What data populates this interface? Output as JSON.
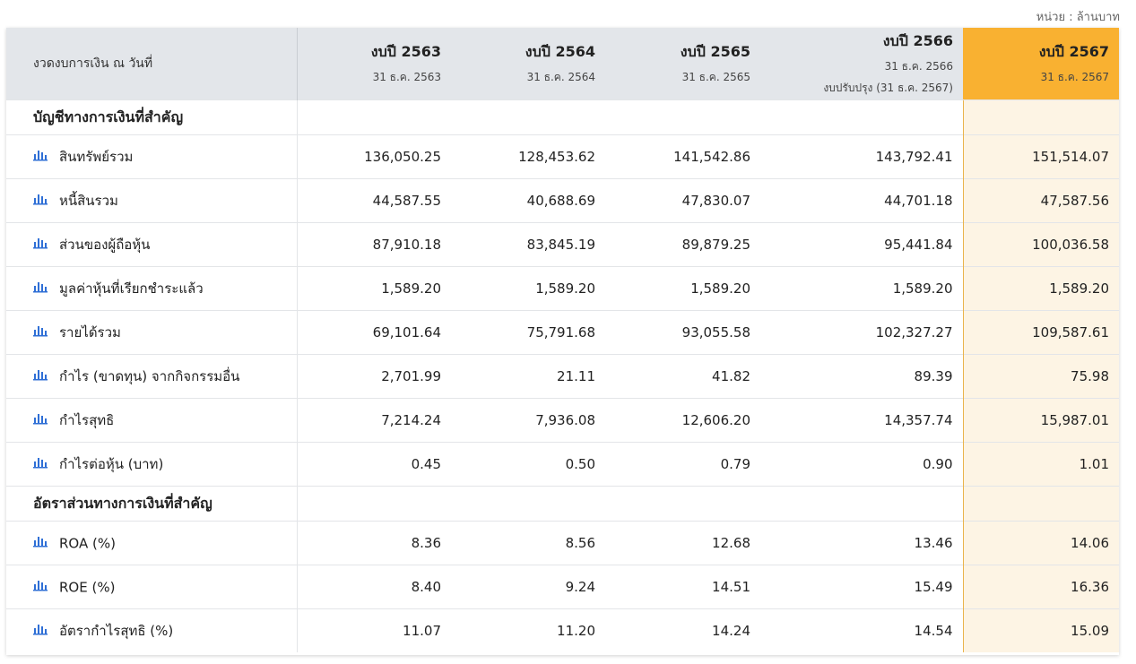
{
  "unit_label": "หน่วย : ล้านบาท",
  "header": {
    "first_col": "งวดงบการเงิน ณ วันที่",
    "years": [
      {
        "title": "งบปี 2563",
        "sub": "31 ธ.ค. 2563",
        "sub2": ""
      },
      {
        "title": "งบปี 2564",
        "sub": "31 ธ.ค. 2564",
        "sub2": ""
      },
      {
        "title": "งบปี 2565",
        "sub": "31 ธ.ค. 2565",
        "sub2": ""
      },
      {
        "title": "งบปี 2566",
        "sub": "31 ธ.ค. 2566",
        "sub2": "งบปรับปรุง (31 ธ.ค. 2567)"
      },
      {
        "title": "งบปี 2567",
        "sub": "31 ธ.ค. 2567",
        "sub2": ""
      }
    ]
  },
  "highlight_color": "#f9b131",
  "icon_color": "#2f6fd6",
  "sections": [
    {
      "title": "บัญชีทางการเงินที่สำคัญ",
      "rows": [
        {
          "icon": "bar-chart-icon",
          "label": "สินทรัพย์รวม",
          "values": [
            "136,050.25",
            "128,453.62",
            "141,542.86",
            "143,792.41",
            "151,514.07"
          ]
        },
        {
          "icon": "bar-chart-icon",
          "label": "หนี้สินรวม",
          "values": [
            "44,587.55",
            "40,688.69",
            "47,830.07",
            "44,701.18",
            "47,587.56"
          ]
        },
        {
          "icon": "bar-chart-icon",
          "label": "ส่วนของผู้ถือหุ้น",
          "values": [
            "87,910.18",
            "83,845.19",
            "89,879.25",
            "95,441.84",
            "100,036.58"
          ]
        },
        {
          "icon": "bar-chart-icon",
          "label": "มูลค่าหุ้นที่เรียกชำระแล้ว",
          "values": [
            "1,589.20",
            "1,589.20",
            "1,589.20",
            "1,589.20",
            "1,589.20"
          ]
        },
        {
          "icon": "bar-chart-icon",
          "label": "รายได้รวม",
          "values": [
            "69,101.64",
            "75,791.68",
            "93,055.58",
            "102,327.27",
            "109,587.61"
          ]
        },
        {
          "icon": "bar-chart-icon",
          "label": "กำไร (ขาดทุน) จากกิจกรรมอื่น",
          "values": [
            "2,701.99",
            "21.11",
            "41.82",
            "89.39",
            "75.98"
          ]
        },
        {
          "icon": "bar-chart-icon",
          "label": "กำไรสุทธิ",
          "values": [
            "7,214.24",
            "7,936.08",
            "12,606.20",
            "14,357.74",
            "15,987.01"
          ]
        },
        {
          "icon": "bar-chart-icon",
          "label": "กำไรต่อหุ้น (บาท)",
          "values": [
            "0.45",
            "0.50",
            "0.79",
            "0.90",
            "1.01"
          ]
        }
      ]
    },
    {
      "title": "อัตราส่วนทางการเงินที่สำคัญ",
      "rows": [
        {
          "icon": "bar-chart-icon",
          "label": "ROA (%)",
          "values": [
            "8.36",
            "8.56",
            "12.68",
            "13.46",
            "14.06"
          ]
        },
        {
          "icon": "bar-chart-icon",
          "label": "ROE (%)",
          "values": [
            "8.40",
            "9.24",
            "14.51",
            "15.49",
            "16.36"
          ]
        },
        {
          "icon": "bar-chart-icon",
          "label": "อัตรากำไรสุทธิ (%)",
          "values": [
            "11.07",
            "11.20",
            "14.24",
            "14.54",
            "15.09"
          ]
        }
      ]
    }
  ]
}
